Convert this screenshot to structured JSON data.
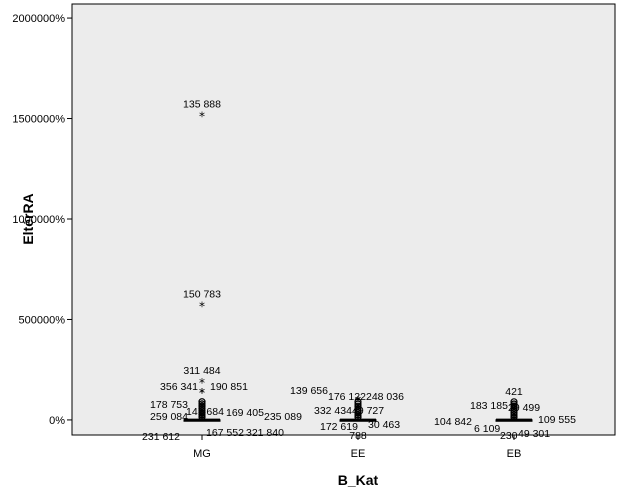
{
  "chart_data": {
    "type": "boxplot",
    "xlabel": "B_Kat",
    "ylabel": "EltérRA",
    "categories": [
      "MG",
      "EE",
      "EB"
    ],
    "y_ticks": [
      "0%",
      "500000%",
      "1000000%",
      "1500000%",
      "2000000%"
    ],
    "y_tick_values": [
      0,
      500000,
      1000000,
      1500000,
      2000000
    ],
    "ylim": [
      -75000,
      2070000
    ],
    "grid": false,
    "background": "#ececec",
    "boxes": [
      {
        "category": "MG",
        "q1": -500,
        "median": 0,
        "q3": 900,
        "whisker_low": -3000,
        "whisker_high": 4000
      },
      {
        "category": "EE",
        "q1": -500,
        "median": 0,
        "q3": 800,
        "whisker_low": -3000,
        "whisker_high": 3500
      },
      {
        "category": "EB",
        "q1": -500,
        "median": 0,
        "q3": 800,
        "whisker_low": -3000,
        "whisker_high": 3500
      }
    ],
    "labeled_outliers": [
      {
        "category": "MG",
        "y": 1515000,
        "label": "135 888",
        "marker": "extreme"
      },
      {
        "category": "MG",
        "y": 570000,
        "label": "150 783",
        "marker": "extreme"
      },
      {
        "category": "MG",
        "y": 190000,
        "label": "311 484",
        "marker": "extreme"
      },
      {
        "category": "MG",
        "y": 140000,
        "label": "356 341",
        "marker": "extreme"
      },
      {
        "category": "MG",
        "y": 140000,
        "label": "190 851",
        "marker": "extreme"
      },
      {
        "category": "MG",
        "y": 80000,
        "label": "178 753",
        "marker": "extreme"
      },
      {
        "category": "MG",
        "y": 65000,
        "label": "141 684",
        "marker": "extreme"
      },
      {
        "category": "MG",
        "y": 40000,
        "label": "259 084",
        "marker": "extreme"
      },
      {
        "category": "MG",
        "y": 40000,
        "label": "169 405",
        "marker": "extreme"
      },
      {
        "category": "MG",
        "y": 30000,
        "label": "235 089",
        "marker": "extreme"
      },
      {
        "category": "MG",
        "y": 10000,
        "label": "167 552",
        "marker": "extreme"
      },
      {
        "category": "MG",
        "y": 10000,
        "label": "321 840",
        "marker": "extreme"
      },
      {
        "category": "MG",
        "y": 5000,
        "label": "231 612",
        "marker": "extreme"
      },
      {
        "category": "EE",
        "y": 100000,
        "label": "139 656",
        "marker": "extreme"
      },
      {
        "category": "EE",
        "y": 100000,
        "label": "176 122",
        "marker": "extreme"
      },
      {
        "category": "EE",
        "y": 100000,
        "label": "248 036",
        "marker": "extreme"
      },
      {
        "category": "EE",
        "y": 60000,
        "label": "332 434",
        "marker": "extreme"
      },
      {
        "category": "EE",
        "y": 60000,
        "label": "49 727",
        "marker": "extreme"
      },
      {
        "category": "EE",
        "y": 20000,
        "label": "172 619",
        "marker": "extreme"
      },
      {
        "category": "EE",
        "y": 20000,
        "label": "30 463",
        "marker": "extreme"
      },
      {
        "category": "EE",
        "y": 10000,
        "label": "788",
        "marker": "extreme"
      },
      {
        "category": "EB",
        "y": 75000,
        "label": "421",
        "marker": "extreme"
      },
      {
        "category": "EB",
        "y": 55000,
        "label": "183 185",
        "marker": "extreme"
      },
      {
        "category": "EB",
        "y": 55000,
        "label": "29 499",
        "marker": "extreme"
      },
      {
        "category": "EB",
        "y": 25000,
        "label": "104 842",
        "marker": "extreme"
      },
      {
        "category": "EB",
        "y": 25000,
        "label": "109 555",
        "marker": "extreme"
      },
      {
        "category": "EB",
        "y": 10000,
        "label": "6 109",
        "marker": "extreme"
      },
      {
        "category": "EB",
        "y": 5000,
        "label": "49 301",
        "marker": "extreme"
      },
      {
        "category": "EB",
        "y": 5000,
        "label": "230",
        "marker": "extreme"
      }
    ]
  }
}
